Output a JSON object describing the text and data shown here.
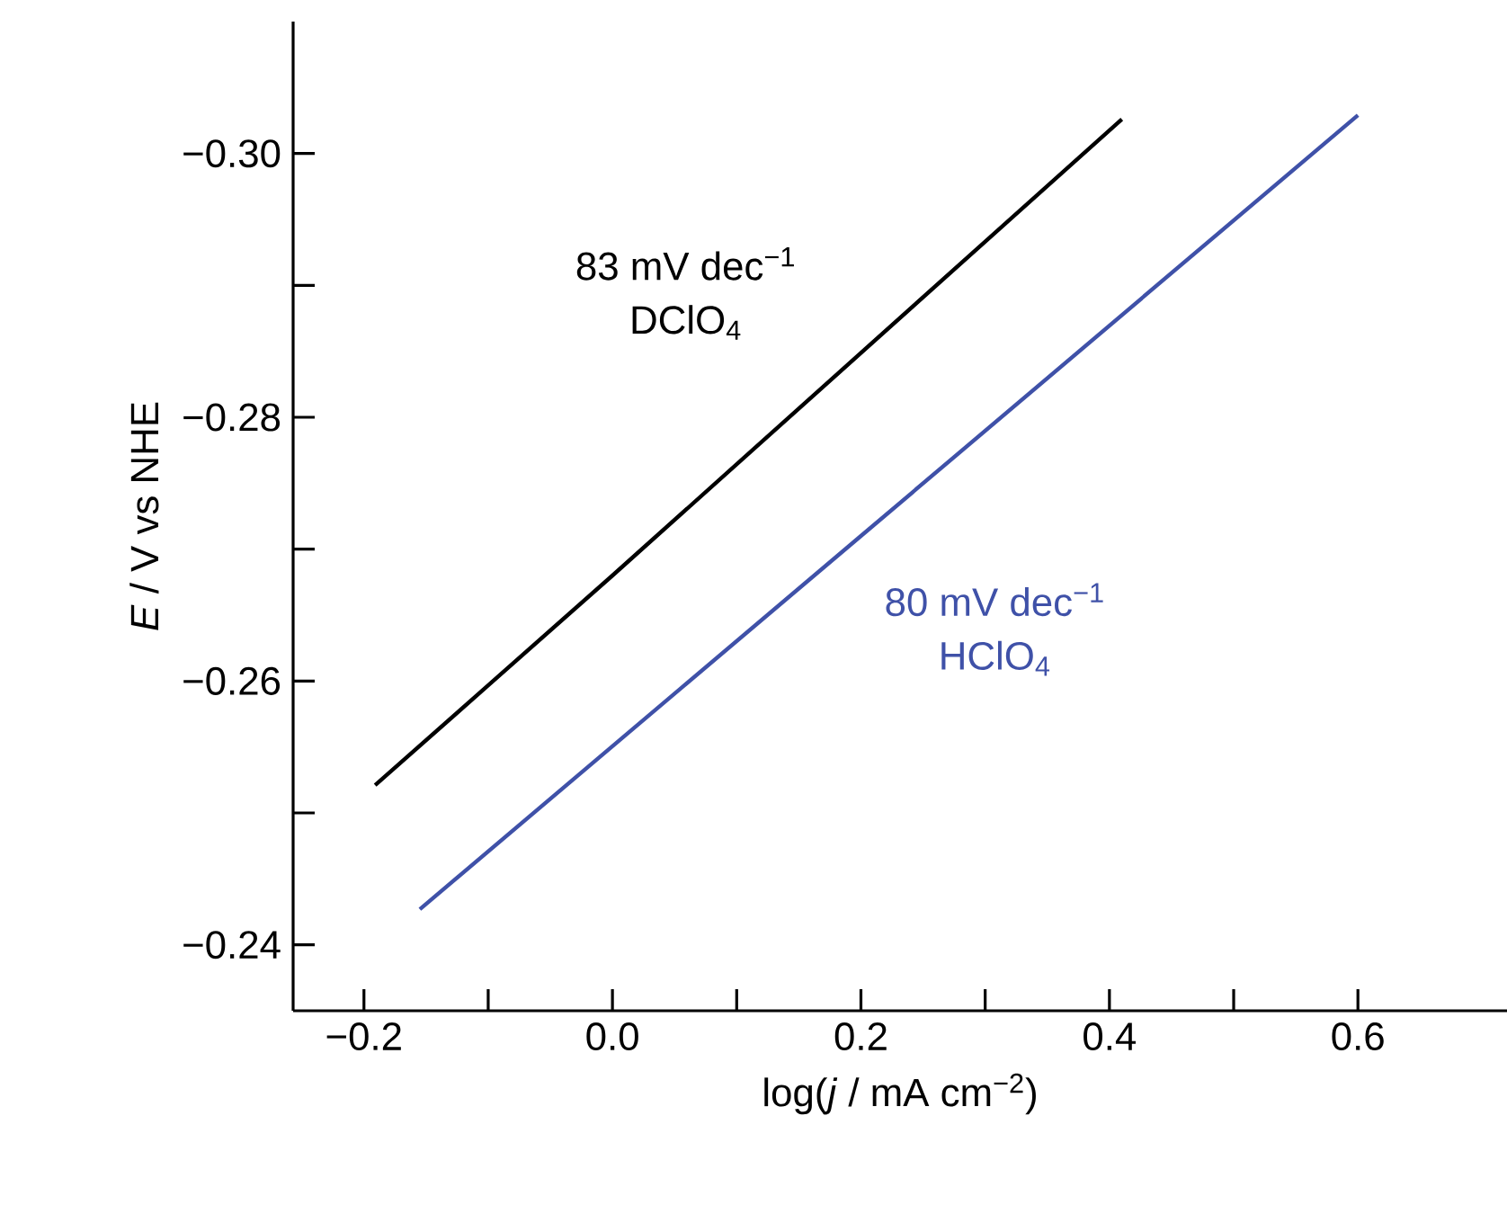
{
  "chart_data": {
    "type": "line",
    "xlabel": "log(*j* / mA cm$^{−2}$)",
    "ylabel": "*E* / V vs NHE",
    "series": [
      {
        "name": "DClO$_{4}$",
        "color": "#000000",
        "x": [
          -0.191,
          0.0,
          0.41
        ],
        "values": [
          -0.2521,
          -0.268,
          -0.3026
        ]
      },
      {
        "name": "HClO$_{4}$",
        "color": "#3f51a8",
        "x": [
          -0.155,
          0.2,
          0.6
        ],
        "values": [
          -0.2427,
          -0.271,
          -0.3029
        ]
      }
    ],
    "annotations": [
      "83 mV dec$^{−1}$",
      "80 mV dec$^{−1}$"
    ],
    "xlim": [
      -0.257,
      0.72
    ],
    "ylim": [
      -0.235,
      -0.31
    ],
    "xticks": [
      {
        "value": -0.2,
        "label": "−0.2"
      },
      {
        "value": -0.1,
        "label": null
      },
      {
        "value": 0.0,
        "label": "0.0"
      },
      {
        "value": 0.1,
        "label": null
      },
      {
        "value": 0.2,
        "label": "0.2"
      },
      {
        "value": 0.3,
        "label": null
      },
      {
        "value": 0.4,
        "label": "0.4"
      },
      {
        "value": 0.5,
        "label": null
      },
      {
        "value": 0.6,
        "label": "0.6"
      }
    ],
    "yticks": [
      {
        "value": -0.3,
        "label": "−0.30"
      },
      {
        "value": -0.29,
        "label": null
      },
      {
        "value": -0.28,
        "label": "−0.28"
      },
      {
        "value": -0.27,
        "label": null
      },
      {
        "value": -0.26,
        "label": "−0.26"
      },
      {
        "value": -0.25,
        "label": null
      },
      {
        "value": -0.24,
        "label": "−0.24"
      }
    ],
    "grid": false,
    "legend": false,
    "marker": "none",
    "line_style": "solid"
  }
}
